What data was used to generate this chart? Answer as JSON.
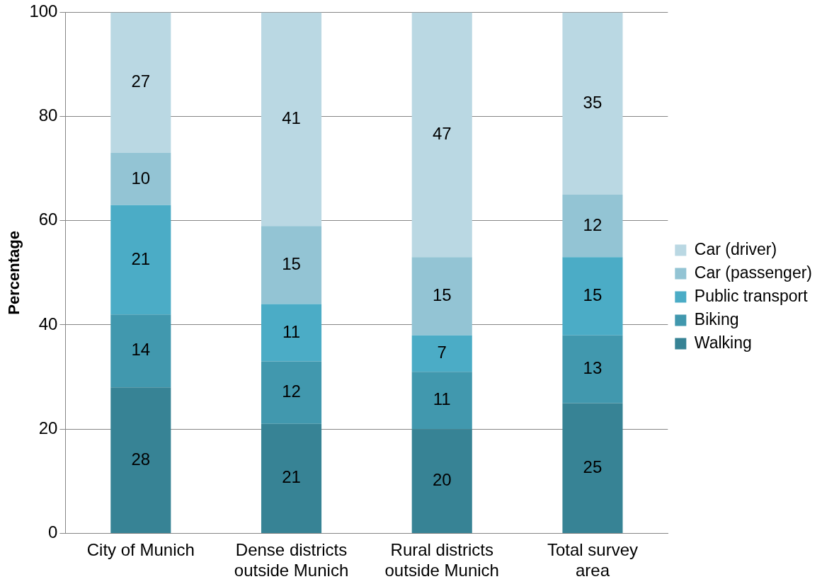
{
  "chart_data": {
    "type": "bar",
    "stacked": true,
    "ylabel": "Percentage",
    "categories": [
      "City of Munich",
      "Dense districts\noutside Munich",
      "Rural districts\noutside Munich",
      "Total survey\narea"
    ],
    "series": [
      {
        "name": "Walking",
        "color": "#378395",
        "values": [
          28,
          21,
          20,
          25
        ]
      },
      {
        "name": "Biking",
        "color": "#4198ae",
        "values": [
          14,
          12,
          11,
          13
        ]
      },
      {
        "name": "Public transport",
        "color": "#4bacc6",
        "values": [
          21,
          11,
          7,
          15
        ]
      },
      {
        "name": "Car (passenger)",
        "color": "#93c4d4",
        "values": [
          10,
          15,
          15,
          12
        ]
      },
      {
        "name": "Car (driver)",
        "color": "#bad8e3",
        "values": [
          27,
          41,
          47,
          35
        ]
      }
    ],
    "ylim": [
      0,
      100
    ],
    "yticks": [
      0,
      20,
      40,
      60,
      80,
      100
    ],
    "grid": "y",
    "legend": "right",
    "data_labels": true
  }
}
